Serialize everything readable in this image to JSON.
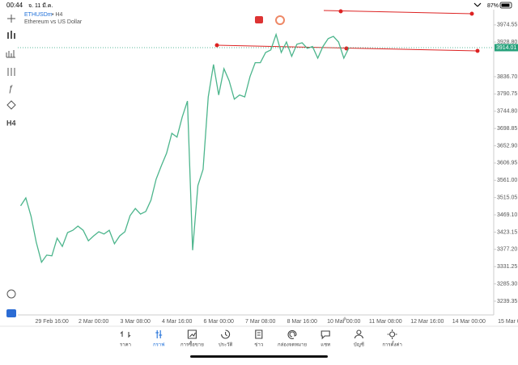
{
  "status_bar": {
    "time": "00:44",
    "date": "จ. 11 มี.ค.",
    "battery": "87%"
  },
  "symbol": {
    "name": "ETHUSDm",
    "period": "• H4",
    "description": "Ethereum vs US Dollar"
  },
  "left_toolbar": {
    "timeframe": "H4"
  },
  "chart_data": {
    "type": "line",
    "color": "#4cb58c",
    "categories": [
      null,
      null,
      null,
      null,
      null,
      null,
      "29 Feb 16:00",
      null,
      null,
      null,
      null,
      null,
      null,
      null,
      "2 Mar 00:00",
      null,
      null,
      null,
      null,
      null,
      null,
      null,
      "3 Mar 08:00",
      null,
      null,
      null,
      null,
      null,
      null,
      null,
      "4 Mar 16:00",
      null,
      null,
      null,
      null,
      null,
      null,
      null,
      "6 Mar 00:00",
      null,
      null,
      null,
      null,
      null,
      null,
      null,
      "7 Mar 08:00",
      null,
      null,
      null,
      null,
      null,
      null,
      null,
      "8 Mar 16:00",
      null,
      null,
      null,
      null,
      null,
      null,
      null,
      "10 Mar 00:00",
      null,
      null,
      null,
      null,
      null,
      null,
      null,
      "11 Mar 08:00",
      null,
      null,
      null,
      null,
      null,
      null,
      null,
      "12 Mar 16:00",
      null,
      null,
      null,
      null,
      null,
      null,
      null,
      "14 Mar 00:00",
      null,
      null,
      null,
      null,
      null,
      null,
      null,
      "15 Mar 08"
    ],
    "values": [
      3493,
      3514,
      3465,
      3396,
      3343,
      3362,
      3360,
      3407,
      3385,
      3422,
      3428,
      3439,
      3428,
      3400,
      3413,
      3424,
      3418,
      3428,
      3392,
      3413,
      3424,
      3467,
      3486,
      3471,
      3478,
      3508,
      3564,
      3600,
      3633,
      3686,
      3676,
      3729,
      3772,
      3375,
      3547,
      3590,
      3783,
      3869,
      3788,
      3858,
      3826,
      3777,
      3788,
      3783,
      3837,
      3874,
      3874,
      3901,
      3908,
      3949,
      3901,
      3929,
      3891,
      3923,
      3927,
      3912,
      3917,
      3886,
      3917,
      3938,
      3944,
      3929,
      3886,
      3914,
      null,
      null,
      null,
      null,
      null,
      null,
      null,
      null,
      null,
      null,
      null,
      null,
      null,
      null,
      null,
      null,
      null,
      null,
      null,
      null,
      null,
      null,
      null,
      null,
      null,
      null,
      null,
      null,
      null,
      null,
      null
    ],
    "ylim": [
      3207,
      4015
    ],
    "yticks": [
      3974.55,
      {
        "value": 3928.8,
        "label": "3928.80"
      },
      {
        "value": 3836.7,
        "label": "3836.70"
      },
      3790.75,
      {
        "value": 3744.8,
        "label": "3744.80"
      },
      3698.85,
      {
        "value": 3652.9,
        "label": "3652.90"
      },
      3606.95,
      {
        "value": 3561,
        "label": "3561.00"
      },
      3515.05,
      {
        "value": 3469.1,
        "label": "3469.10"
      },
      3423.15,
      {
        "value": 3377.2,
        "label": "3377.20"
      },
      3331.25,
      {
        "value": 3285.3,
        "label": "3285.30"
      },
      3239.35
    ],
    "current_price": 3914.01,
    "current_price_color": "#26a17b"
  },
  "tab_bar": {
    "tabs": [
      "ราคา",
      "กราฟ",
      "การซื้อขาย",
      "ประวัติ",
      "ข่าว",
      "กล่องจดหมาย",
      "แชท",
      "บัญชี",
      "การตั้งค่า"
    ],
    "active": 1
  }
}
